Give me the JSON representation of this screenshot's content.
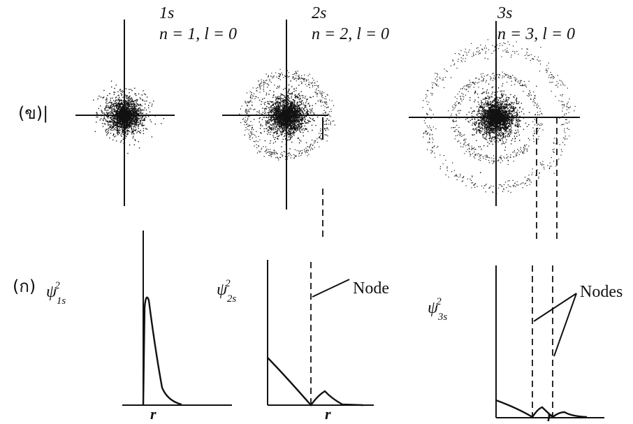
{
  "top_row": {
    "label": "(ข)|",
    "orbitals": [
      {
        "name": "1s",
        "quantum_numbers": "n = 1, l = 0"
      },
      {
        "name": "2s",
        "quantum_numbers": "n = 2, l = 0"
      },
      {
        "name": "3s",
        "quantum_numbers": "n = 3, l = 0"
      }
    ]
  },
  "bottom_row": {
    "label": "(ก)",
    "plots": [
      {
        "ylabel": {
          "symbol": "ψ",
          "subscript": "1s",
          "superscript": "2"
        },
        "xlabel": "r"
      },
      {
        "ylabel": {
          "symbol": "ψ",
          "subscript": "2s",
          "superscript": "2"
        },
        "xlabel": "r",
        "annotation": "Node"
      },
      {
        "ylabel": {
          "symbol": "ψ",
          "subscript": "3s",
          "superscript": "2"
        },
        "xlabel": "r",
        "annotation": "Nodes"
      }
    ]
  }
}
